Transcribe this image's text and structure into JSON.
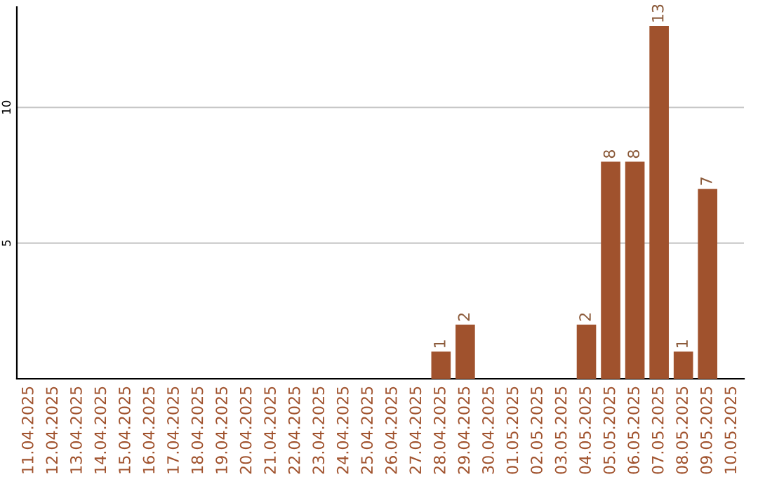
{
  "chart_data": {
    "type": "bar",
    "categories": [
      "11.04.2025",
      "12.04.2025",
      "13.04.2025",
      "14.04.2025",
      "15.04.2025",
      "16.04.2025",
      "17.04.2025",
      "18.04.2025",
      "19.04.2025",
      "20.04.2025",
      "21.04.2025",
      "22.04.2025",
      "23.04.2025",
      "24.04.2025",
      "25.04.2025",
      "26.04.2025",
      "27.04.2025",
      "28.04.2025",
      "29.04.2025",
      "30.04.2025",
      "01.05.2025",
      "02.05.2025",
      "03.05.2025",
      "04.05.2025",
      "05.05.2025",
      "06.05.2025",
      "07.05.2025",
      "08.05.2025",
      "09.05.2025",
      "10.05.2025"
    ],
    "values": [
      0,
      0,
      0,
      0,
      0,
      0,
      0,
      0,
      0,
      0,
      0,
      0,
      0,
      0,
      0,
      0,
      0,
      1,
      2,
      0,
      0,
      0,
      0,
      2,
      8,
      8,
      13,
      1,
      7,
      0
    ],
    "value_labels": [
      null,
      null,
      null,
      null,
      null,
      null,
      null,
      null,
      null,
      null,
      null,
      null,
      null,
      null,
      null,
      null,
      null,
      "1",
      "2",
      null,
      null,
      null,
      null,
      "2",
      "8",
      "8",
      "13",
      "1",
      "7",
      null
    ],
    "color": "#a0522d",
    "ylim": [
      0,
      13.7
    ],
    "yticks": [
      5,
      10
    ],
    "grid": "y"
  }
}
